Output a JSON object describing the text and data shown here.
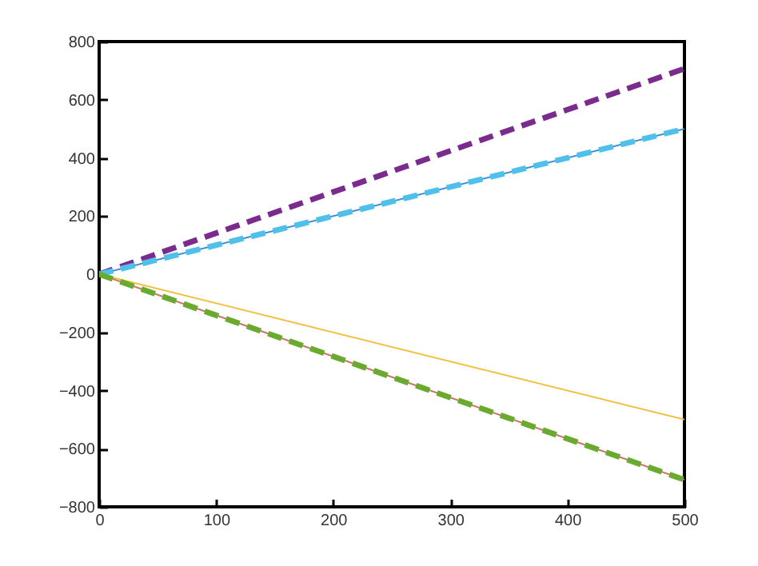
{
  "chart_data": {
    "type": "line",
    "x": [
      0,
      500
    ],
    "series": [
      {
        "color": "#7b2a8e",
        "values": [
          0,
          707
        ],
        "line_style": "dashed"
      },
      {
        "color": "#3a8fd6",
        "values": [
          0,
          500
        ],
        "line_style": "solid"
      },
      {
        "color": "#4fc0ea",
        "values": [
          0,
          500
        ],
        "line_style": "dashed"
      },
      {
        "color": "#f2c040",
        "values": [
          0,
          -500
        ],
        "line_style": "solid"
      },
      {
        "color": "#c8786a",
        "values": [
          0,
          -707
        ],
        "line_style": "solid"
      },
      {
        "color": "#6aaa2e",
        "values": [
          0,
          -707
        ],
        "line_style": "dashed"
      }
    ],
    "xlim": [
      0,
      500
    ],
    "xticks": [
      0,
      100,
      200,
      300,
      400,
      500
    ],
    "ylim": [
      -800,
      800
    ],
    "yticks": [
      -800,
      -600,
      -400,
      -200,
      0,
      200,
      400,
      600,
      800
    ],
    "grid": false,
    "marker": "none"
  }
}
